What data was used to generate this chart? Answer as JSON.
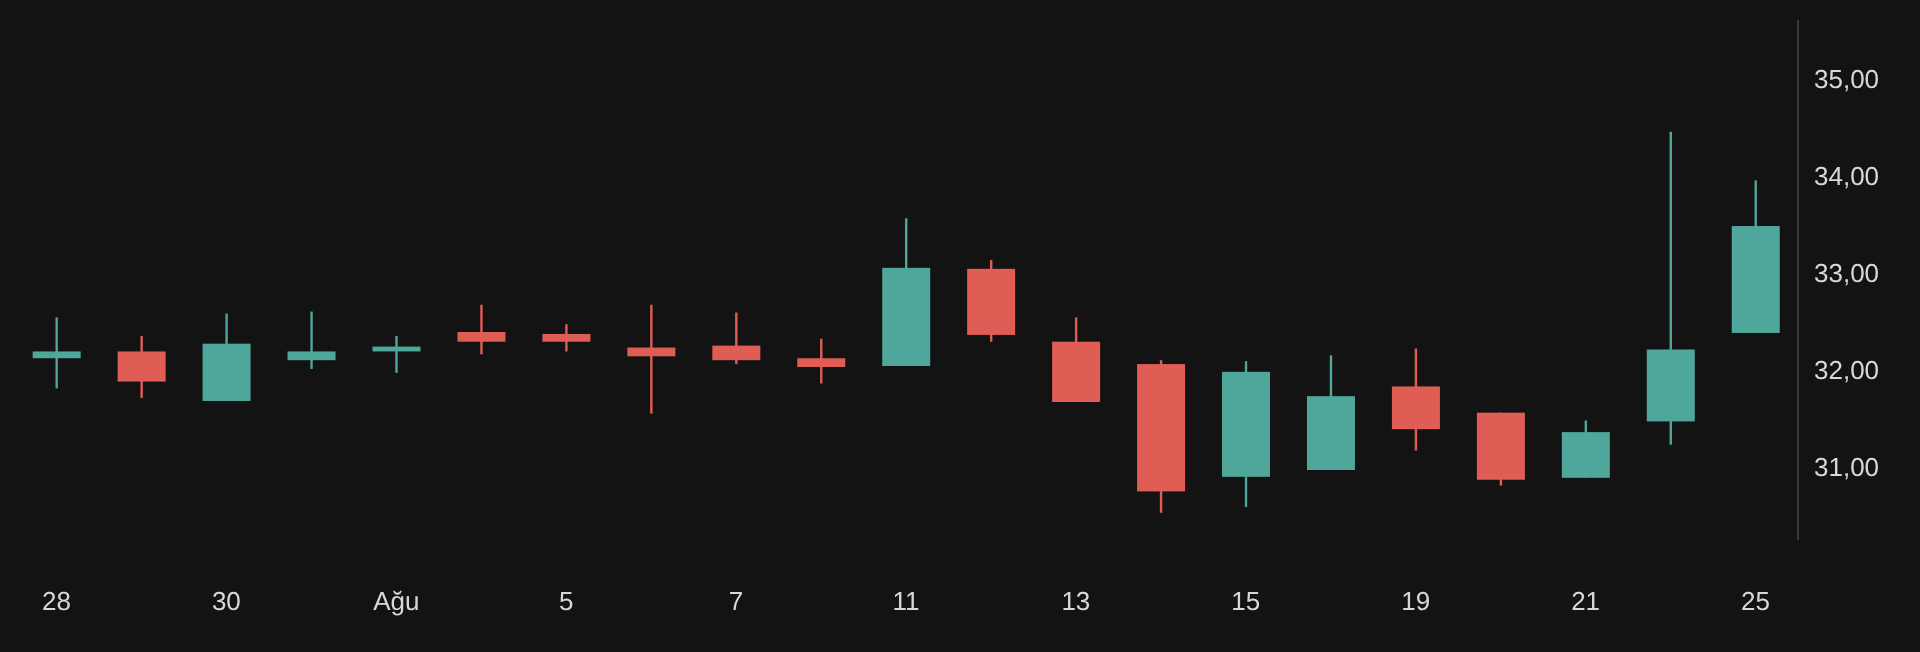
{
  "chart_data": {
    "type": "candlestick",
    "categories": [
      "28",
      null,
      "30",
      null,
      "Ağu",
      null,
      "5",
      null,
      "7",
      null,
      "11",
      null,
      "13",
      null,
      "15",
      null,
      "19",
      null,
      "21",
      null,
      "25"
    ],
    "ohlc": [
      [
        32.12,
        32.54,
        31.81,
        32.19
      ],
      [
        32.19,
        32.35,
        31.71,
        31.88
      ],
      [
        31.68,
        32.58,
        31.68,
        32.27
      ],
      [
        32.1,
        32.6,
        32.01,
        32.19
      ],
      [
        32.19,
        32.35,
        31.97,
        32.24
      ],
      [
        32.39,
        32.67,
        32.16,
        32.29
      ],
      [
        32.37,
        32.47,
        32.19,
        32.29
      ],
      [
        32.23,
        32.67,
        31.55,
        32.14
      ],
      [
        32.25,
        32.59,
        32.06,
        32.1
      ],
      [
        32.12,
        32.32,
        31.86,
        32.03
      ],
      [
        32.04,
        33.56,
        32.04,
        33.05
      ],
      [
        33.04,
        33.13,
        32.29,
        32.36
      ],
      [
        32.29,
        32.54,
        31.67,
        31.67
      ],
      [
        32.06,
        32.1,
        30.53,
        30.75
      ],
      [
        30.9,
        32.09,
        30.59,
        31.98
      ],
      [
        30.97,
        32.15,
        30.97,
        31.73
      ],
      [
        31.83,
        32.22,
        31.17,
        31.39
      ],
      [
        31.56,
        31.56,
        30.81,
        30.87
      ],
      [
        30.89,
        31.48,
        30.89,
        31.36
      ],
      [
        31.47,
        34.45,
        31.23,
        32.21
      ],
      [
        32.38,
        33.95,
        32.38,
        33.48
      ]
    ],
    "colors": [
      "#4fa69a",
      "#e05d55",
      "#4fa69a",
      "#4fa69a",
      "#4fa69a",
      "#e05d55",
      "#e05d55",
      "#e05d55",
      "#e05d55",
      "#e05d55",
      "#4fa69a",
      "#e05d55",
      "#e05d55",
      "#e05d55",
      "#4fa69a",
      "#4fa69a",
      "#e05d55",
      "#e05d55",
      "#4fa69a",
      "#4fa69a",
      "#4fa69a"
    ],
    "ylim": [
      30.25,
      35.6
    ],
    "yticks": [
      {
        "value": 31,
        "label": "31,00"
      },
      {
        "value": 32,
        "label": "32,00"
      },
      {
        "value": 33,
        "label": "33,00"
      },
      {
        "value": 34,
        "label": "34,00"
      },
      {
        "value": 35,
        "label": "35,00"
      }
    ],
    "grid": false,
    "legend": false
  }
}
